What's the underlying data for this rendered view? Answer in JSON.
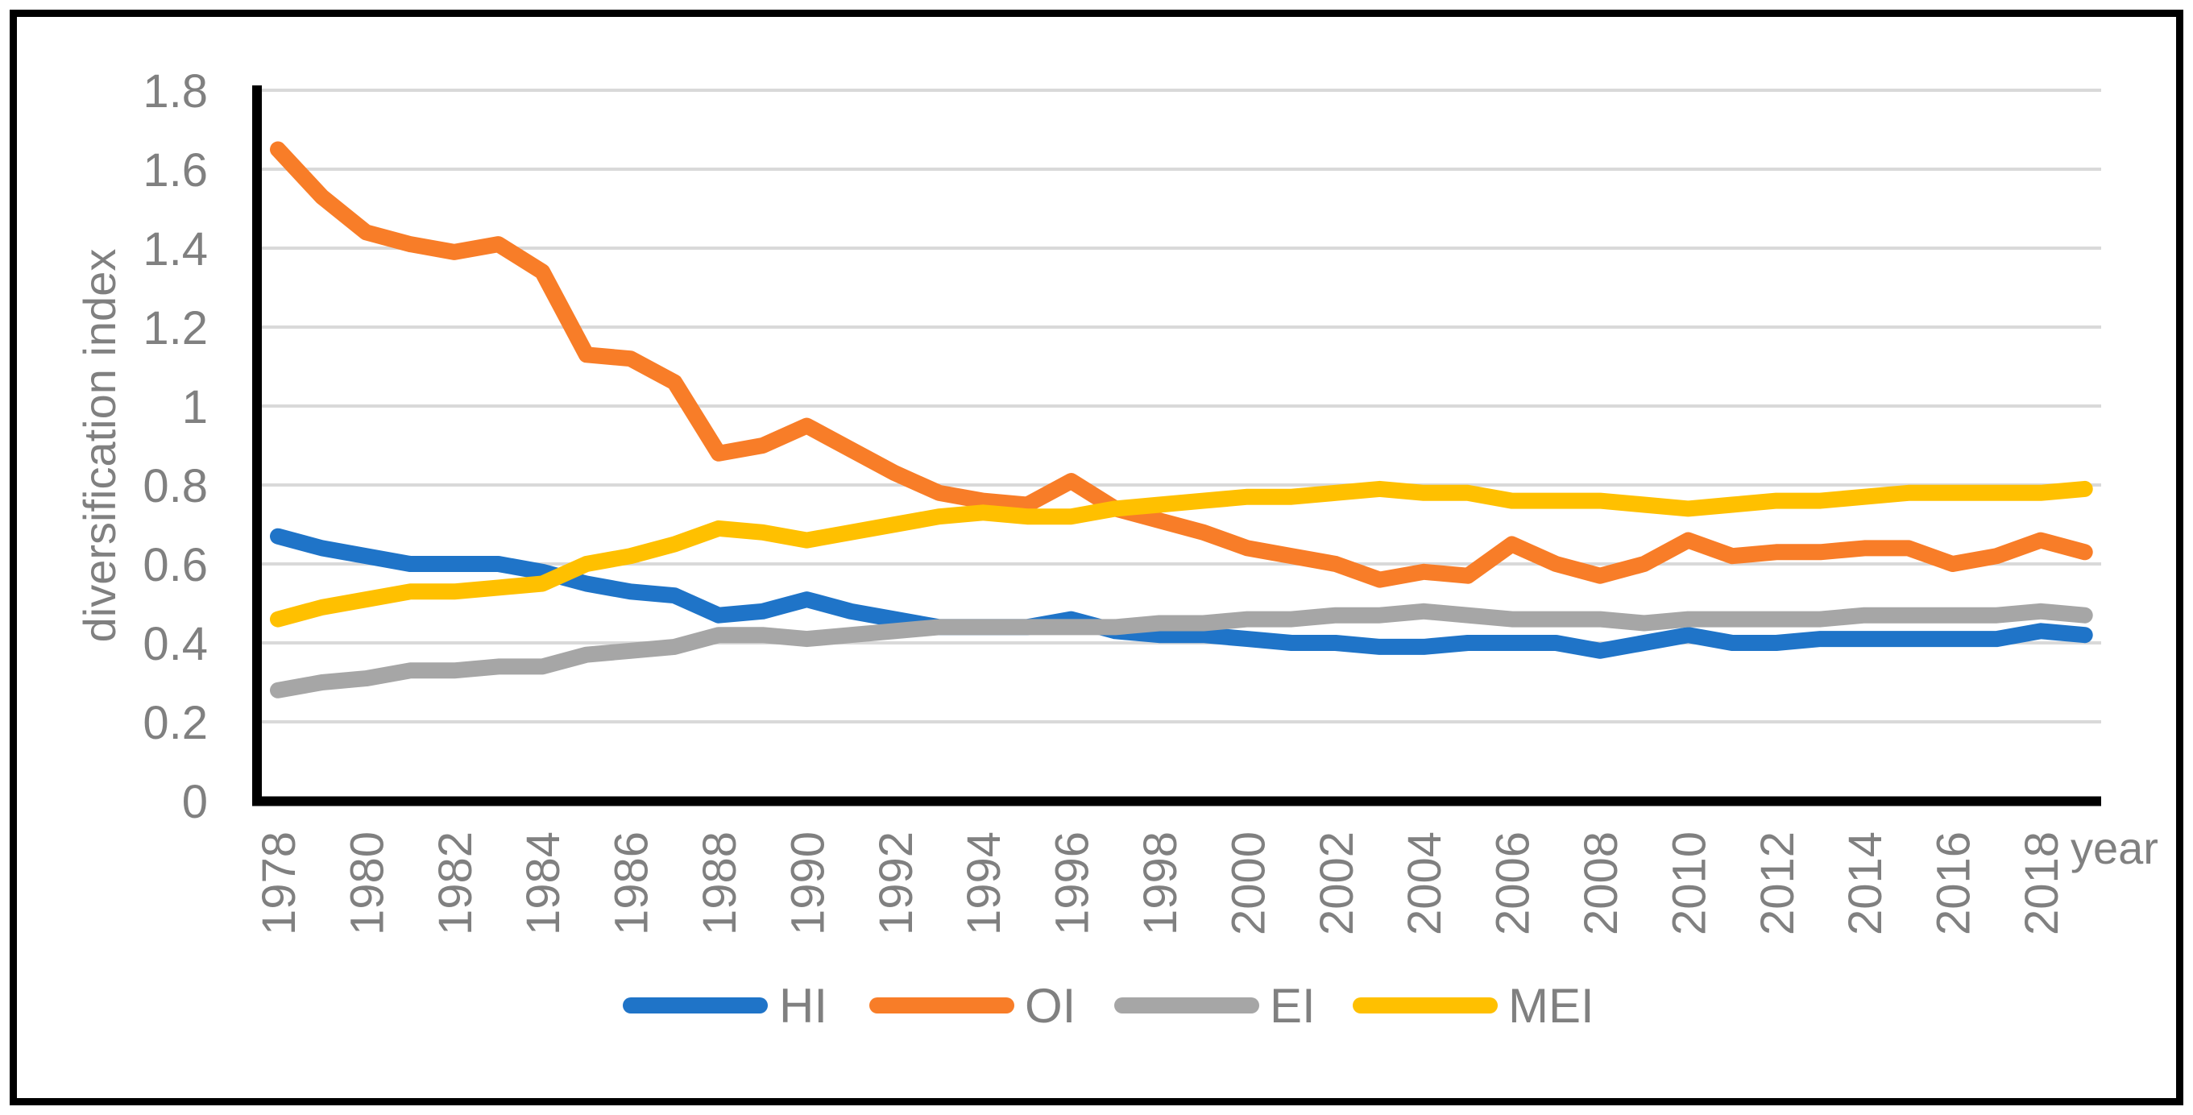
{
  "chart_data": {
    "type": "line",
    "title": "",
    "xlabel": "year",
    "ylabel": "diversification index",
    "x": [
      1978,
      1979,
      1980,
      1981,
      1982,
      1983,
      1984,
      1985,
      1986,
      1987,
      1988,
      1989,
      1990,
      1991,
      1992,
      1993,
      1994,
      1995,
      1996,
      1997,
      1998,
      1999,
      2000,
      2001,
      2002,
      2003,
      2004,
      2005,
      2006,
      2007,
      2008,
      2009,
      2010,
      2011,
      2012,
      2013,
      2014,
      2015,
      2016,
      2017,
      2018,
      2019
    ],
    "x_tick_labels": [
      "1978",
      "1980",
      "1982",
      "1984",
      "1986",
      "1988",
      "1990",
      "1992",
      "1994",
      "1996",
      "1998",
      "2000",
      "2002",
      "2004",
      "2006",
      "2008",
      "2010",
      "2012",
      "2014",
      "2016",
      "2018"
    ],
    "y_ticks": [
      0,
      0.2,
      0.4,
      0.6,
      0.8,
      1,
      1.2,
      1.4,
      1.6,
      1.8
    ],
    "y_tick_labels": [
      "0",
      "0.2",
      "0.4",
      "0.6",
      "0.8",
      "1",
      "1.2",
      "1.4",
      "1.6",
      "1.8"
    ],
    "ylim": [
      0,
      1.8
    ],
    "grid": true,
    "legend_position": "bottom",
    "series": [
      {
        "name": "HI",
        "color": "#1F74C8",
        "values": [
          0.67,
          0.64,
          0.62,
          0.6,
          0.6,
          0.6,
          0.58,
          0.55,
          0.53,
          0.52,
          0.47,
          0.48,
          0.51,
          0.48,
          0.46,
          0.44,
          0.44,
          0.44,
          0.46,
          0.43,
          0.42,
          0.42,
          0.41,
          0.4,
          0.4,
          0.39,
          0.39,
          0.4,
          0.4,
          0.4,
          0.38,
          0.4,
          0.42,
          0.4,
          0.4,
          0.41,
          0.41,
          0.41,
          0.41,
          0.41,
          0.43,
          0.42
        ]
      },
      {
        "name": "OI",
        "color": "#F87D28",
        "values": [
          1.65,
          1.53,
          1.44,
          1.41,
          1.39,
          1.41,
          1.34,
          1.13,
          1.12,
          1.06,
          0.88,
          0.9,
          0.95,
          0.89,
          0.83,
          0.78,
          0.76,
          0.75,
          0.81,
          0.74,
          0.71,
          0.68,
          0.64,
          0.62,
          0.6,
          0.56,
          0.58,
          0.57,
          0.65,
          0.6,
          0.57,
          0.6,
          0.66,
          0.62,
          0.63,
          0.63,
          0.64,
          0.64,
          0.6,
          0.62,
          0.66,
          0.63
        ]
      },
      {
        "name": "EI",
        "color": "#A6A6A6",
        "values": [
          0.28,
          0.3,
          0.31,
          0.33,
          0.33,
          0.34,
          0.34,
          0.37,
          0.38,
          0.39,
          0.42,
          0.42,
          0.41,
          0.42,
          0.43,
          0.44,
          0.44,
          0.44,
          0.44,
          0.44,
          0.45,
          0.45,
          0.46,
          0.46,
          0.47,
          0.47,
          0.48,
          0.47,
          0.46,
          0.46,
          0.46,
          0.45,
          0.46,
          0.46,
          0.46,
          0.46,
          0.47,
          0.47,
          0.47,
          0.47,
          0.48,
          0.47
        ]
      },
      {
        "name": "MEI",
        "color": "#FFC000",
        "values": [
          0.46,
          0.49,
          0.51,
          0.53,
          0.53,
          0.54,
          0.55,
          0.6,
          0.62,
          0.65,
          0.69,
          0.68,
          0.66,
          0.68,
          0.7,
          0.72,
          0.73,
          0.72,
          0.72,
          0.74,
          0.75,
          0.76,
          0.77,
          0.77,
          0.78,
          0.79,
          0.78,
          0.78,
          0.76,
          0.76,
          0.76,
          0.75,
          0.74,
          0.75,
          0.76,
          0.76,
          0.77,
          0.78,
          0.78,
          0.78,
          0.78,
          0.79
        ]
      }
    ]
  },
  "colors": {
    "background": "#FFFFFF",
    "outer_border": "#000000",
    "axis_line": "#000000",
    "gridline": "#D9D9D9",
    "tick_text": "#808080"
  }
}
